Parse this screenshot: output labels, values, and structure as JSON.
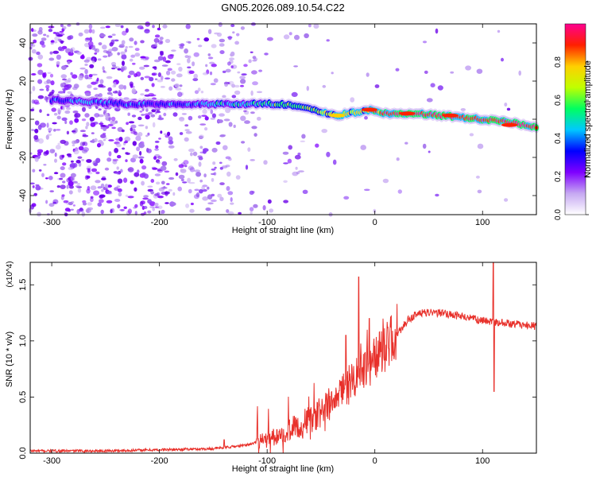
{
  "title": "GN05.2026.089.10.54.C22",
  "chart_data": [
    {
      "type": "heatmap",
      "name": "spectrogram",
      "title": "GN05.2026.089.10.54.C22",
      "xlabel": "Height of straight line (km)",
      "ylabel": "Frequency (Hz)",
      "xlim": [
        -320,
        150
      ],
      "ylim": [
        -50,
        50
      ],
      "xticks": [
        -300,
        -200,
        -100,
        0,
        100
      ],
      "xtick_labels": [
        "-300",
        "-200",
        "-100",
        "0",
        "100"
      ],
      "yticks": [
        -40,
        -20,
        0,
        20,
        40
      ],
      "ytick_labels": [
        "-40",
        "-20",
        "0",
        "20",
        "40"
      ],
      "colorbar": {
        "label": "Normalized spectral amplitude",
        "range": [
          0,
          1
        ],
        "ticks": [
          0.0,
          0.2,
          0.4,
          0.6,
          0.8
        ],
        "tick_labels": [
          "0.0",
          "0.2",
          "0.4",
          "0.6",
          "0.8"
        ],
        "colors": [
          "#ffffff",
          "#c6a8f2",
          "#7f00ff",
          "#0000ff",
          "#00c8ff",
          "#00ff60",
          "#c0ff00",
          "#ffd000",
          "#ff2000",
          "#ff0090"
        ]
      },
      "ridge": {
        "description": "dominant frequency ridge vs height",
        "x": [
          -290,
          -260,
          -230,
          -200,
          -170,
          -140,
          -110,
          -90,
          -70,
          -55,
          -45,
          -35,
          -25,
          -15,
          -5,
          5,
          20,
          40,
          60,
          80,
          100,
          120,
          140,
          150
        ],
        "freq": [
          10,
          9,
          8,
          8,
          8,
          8,
          8,
          8,
          7,
          5,
          3,
          2,
          3,
          4,
          5,
          3,
          3,
          3,
          2,
          1,
          0,
          -1,
          -3,
          -4
        ],
        "amplitude": [
          0.35,
          0.4,
          0.35,
          0.35,
          0.4,
          0.45,
          0.5,
          0.55,
          0.6,
          0.6,
          0.7,
          0.75,
          0.75,
          0.75,
          0.8,
          0.9,
          0.95,
          0.95,
          0.95,
          0.9,
          0.9,
          0.95,
          0.95,
          0.9
        ]
      }
    },
    {
      "type": "line",
      "name": "snr",
      "xlabel": "Height of straight line (km)",
      "ylabel": "SNR (10 * v/v)",
      "y_multiplier": "(x10^4)",
      "xlim": [
        -320,
        150
      ],
      "ylim": [
        0,
        1.7
      ],
      "xticks": [
        -300,
        -200,
        -100,
        0,
        100
      ],
      "xtick_labels": [
        "-300",
        "-200",
        "-100",
        "0",
        "100"
      ],
      "yticks": [
        0.0,
        0.5,
        1.0,
        1.5
      ],
      "ytick_labels": [
        "0.0",
        "0.5",
        "1.0",
        "1.5"
      ],
      "color": "#e8302a",
      "envelope": {
        "x": [
          -320,
          -250,
          -200,
          -150,
          -120,
          -100,
          -80,
          -60,
          -40,
          -20,
          0,
          20,
          30,
          40,
          60,
          80,
          100,
          120,
          150
        ],
        "y": [
          0.02,
          0.02,
          0.03,
          0.04,
          0.07,
          0.12,
          0.2,
          0.3,
          0.45,
          0.65,
          0.85,
          1.05,
          1.18,
          1.25,
          1.25,
          1.22,
          1.18,
          1.16,
          1.13
        ]
      },
      "spikes": [
        {
          "x": -140,
          "y": 0.12
        },
        {
          "x": -27,
          "y": 1.05
        },
        {
          "x": -15,
          "y": 1.57
        },
        {
          "x": -5,
          "y": 1.2
        },
        {
          "x": 110,
          "y": 1.7
        },
        {
          "x": 110.8,
          "y": 0.55
        }
      ]
    }
  ]
}
